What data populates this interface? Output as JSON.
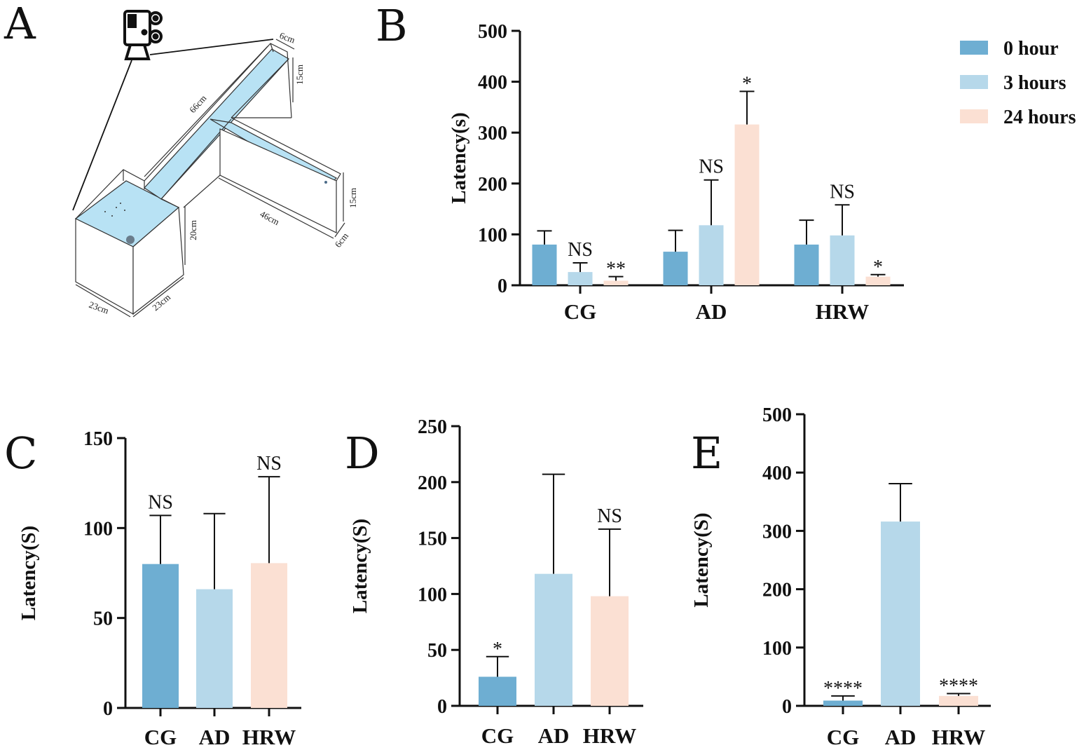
{
  "panels": {
    "a": "A",
    "b": "B",
    "c": "C",
    "d": "D",
    "e": "E"
  },
  "maze": {
    "dims": [
      "6cm",
      "15cm",
      "66cm",
      "15cm",
      "46cm",
      "6cm",
      "20cm",
      "23cm",
      "23cm"
    ],
    "water_color": "#b8e2f4",
    "icon": "video-camera-icon"
  },
  "colors": {
    "hour0": "#6eaed2",
    "hour3": "#b6d8ea",
    "hour24": "#fbe0d3"
  },
  "chart_data": [
    {
      "id": "B",
      "type": "bar",
      "ylabel": "Latency(s)",
      "ylim": [
        0,
        500
      ],
      "yticks": [
        "0",
        "100",
        "200",
        "300",
        "400",
        "500"
      ],
      "categories": [
        "CG",
        "AD",
        "HRW"
      ],
      "legend": {
        "position": "top-right",
        "entries": [
          "0 hour",
          "3 hours",
          "24 hours"
        ]
      },
      "series": [
        {
          "name": "0 hour",
          "values": [
            80,
            66,
            80
          ],
          "errors": [
            27,
            42,
            48
          ],
          "sig": [
            "",
            "",
            ""
          ]
        },
        {
          "name": "3 hours",
          "values": [
            26,
            118,
            98
          ],
          "errors": [
            18,
            89,
            60
          ],
          "sig": [
            "NS",
            "NS",
            "NS"
          ]
        },
        {
          "name": "24 hours",
          "values": [
            9,
            316,
            17
          ],
          "errors": [
            8,
            65,
            4
          ],
          "sig": [
            "**",
            "*",
            "*"
          ]
        }
      ]
    },
    {
      "id": "C",
      "type": "bar",
      "ylabel": "Latency(S)",
      "ylim": [
        0,
        150
      ],
      "yticks": [
        "0",
        "50",
        "100",
        "150"
      ],
      "categories": [
        "CG",
        "AD",
        "HRW"
      ],
      "values": [
        80,
        66,
        80.5
      ],
      "errors": [
        27,
        42,
        48
      ],
      "sig": [
        "NS",
        "",
        "NS"
      ]
    },
    {
      "id": "D",
      "type": "bar",
      "ylabel": "Latency(S)",
      "ylim": [
        0,
        250
      ],
      "yticks": [
        "0",
        "50",
        "100",
        "150",
        "200",
        "250"
      ],
      "categories": [
        "CG",
        "AD",
        "HRW"
      ],
      "values": [
        26,
        118,
        98
      ],
      "errors": [
        18,
        89,
        60
      ],
      "sig": [
        "*",
        "",
        "NS"
      ]
    },
    {
      "id": "E",
      "type": "bar",
      "ylabel": "Latency(S)",
      "ylim": [
        0,
        500
      ],
      "yticks": [
        "0",
        "100",
        "200",
        "300",
        "400",
        "500"
      ],
      "categories": [
        "CG",
        "AD",
        "HRW"
      ],
      "values": [
        9,
        316,
        17
      ],
      "errors": [
        8,
        65,
        4
      ],
      "sig": [
        "****",
        "",
        "****"
      ]
    }
  ]
}
